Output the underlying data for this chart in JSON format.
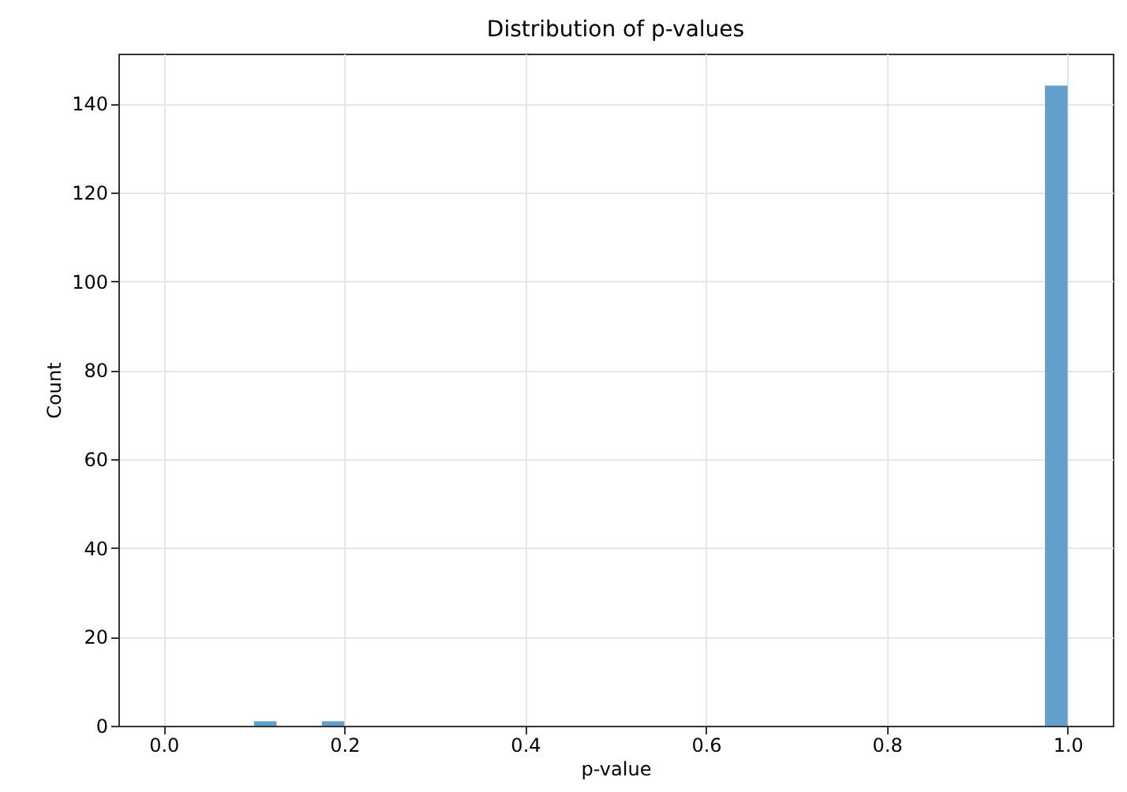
{
  "chart_data": {
    "type": "histogram",
    "title": "Distribution of p-values",
    "xlabel": "p-value",
    "ylabel": "Count",
    "bins": [
      0,
      0.025,
      0.05,
      0.075,
      0.1,
      0.125,
      0.15,
      0.175,
      0.2,
      0.225,
      0.25,
      0.275,
      0.3,
      0.325,
      0.35,
      0.375,
      0.4,
      0.425,
      0.45,
      0.475,
      0.5,
      0.525,
      0.55,
      0.575,
      0.6,
      0.625,
      0.65,
      0.675,
      0.7,
      0.725,
      0.75,
      0.775,
      0.8,
      0.825,
      0.85,
      0.875,
      0.9,
      0.925,
      0.95,
      0.975,
      1
    ],
    "values": [
      0,
      0,
      0,
      0,
      1,
      0,
      0,
      1,
      0,
      0,
      0,
      0,
      0,
      0,
      0,
      0,
      0,
      0,
      0,
      0,
      0,
      0,
      0,
      0,
      0,
      0,
      0,
      0,
      0,
      0,
      0,
      0,
      0,
      0,
      0,
      0,
      0,
      0,
      0,
      144
    ],
    "color": "#62a0cb",
    "xlim": [
      -0.05,
      1.05
    ],
    "xticks": [
      {
        "value": 0,
        "label": "0.0"
      },
      0.2,
      0.4,
      0.6,
      0.8,
      {
        "value": 1,
        "label": "1.0"
      }
    ],
    "ylim": [
      0,
      151.2
    ],
    "yticks": [
      0,
      20,
      40,
      60,
      80,
      100,
      120,
      140
    ],
    "grid": true
  }
}
